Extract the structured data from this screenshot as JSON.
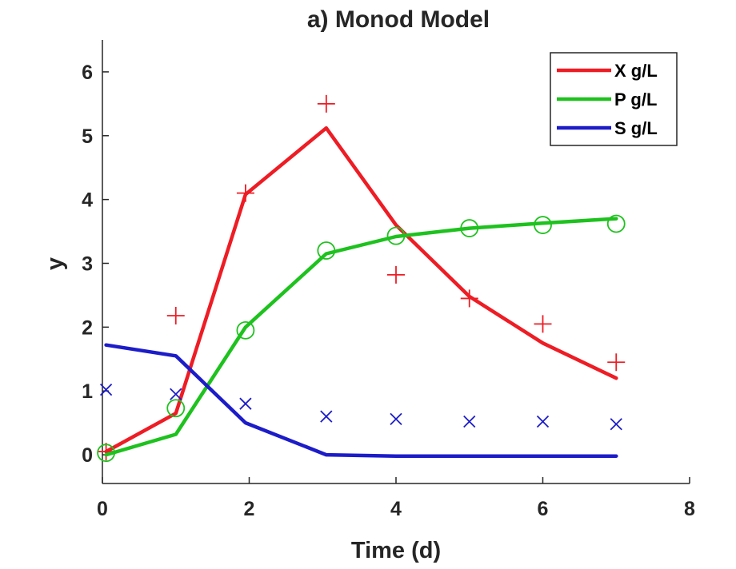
{
  "chart_data": {
    "type": "line",
    "title": "a) Monod Model",
    "xlabel": "Time (d)",
    "ylabel": "y",
    "xlim": [
      0,
      8
    ],
    "ylim": [
      -0.45,
      6.5
    ],
    "xticks": [
      0,
      2,
      4,
      6,
      8
    ],
    "yticks": [
      0,
      1,
      2,
      3,
      4,
      5,
      6
    ],
    "legend_position": "top-right",
    "series": [
      {
        "name": "X g/L",
        "color": "#ee1c24",
        "line": {
          "x": [
            0.05,
            1.0,
            1.95,
            3.05,
            4.0,
            5.0,
            6.0,
            7.0
          ],
          "y": [
            0.05,
            0.65,
            4.08,
            5.12,
            3.6,
            2.48,
            1.75,
            1.2
          ]
        },
        "markers": {
          "symbol": "plus",
          "x": [
            0.05,
            1.0,
            1.95,
            3.05,
            4.0,
            5.0,
            6.0,
            7.0
          ],
          "y": [
            0.05,
            2.18,
            4.1,
            5.5,
            2.82,
            2.45,
            2.05,
            1.45
          ]
        }
      },
      {
        "name": "P g/L",
        "color": "#1ec21e",
        "line": {
          "x": [
            0.05,
            1.0,
            1.95,
            3.05,
            4.0,
            5.0,
            6.0,
            7.0
          ],
          "y": [
            0.0,
            0.32,
            2.0,
            3.15,
            3.42,
            3.55,
            3.63,
            3.7
          ]
        },
        "markers": {
          "symbol": "circle",
          "x": [
            0.05,
            1.0,
            1.95,
            3.05,
            4.0,
            5.0,
            6.0,
            7.0
          ],
          "y": [
            0.03,
            0.73,
            1.95,
            3.2,
            3.43,
            3.55,
            3.6,
            3.62
          ]
        }
      },
      {
        "name": "S g/L",
        "color": "#1c1cc9",
        "line": {
          "x": [
            0.05,
            1.0,
            1.95,
            3.05,
            4.0,
            5.0,
            6.0,
            7.0
          ],
          "y": [
            1.72,
            1.55,
            0.5,
            0.0,
            -0.02,
            -0.02,
            -0.02,
            -0.02
          ]
        },
        "markers": {
          "symbol": "x",
          "x": [
            0.05,
            1.0,
            1.95,
            3.05,
            4.0,
            5.0,
            6.0,
            7.0
          ],
          "y": [
            1.02,
            0.95,
            0.8,
            0.6,
            0.56,
            0.52,
            0.52,
            0.48
          ]
        }
      }
    ]
  }
}
